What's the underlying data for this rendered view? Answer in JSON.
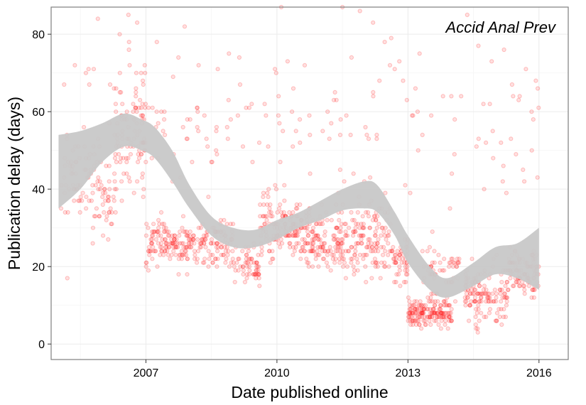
{
  "chart_data": {
    "type": "scatter",
    "title": "",
    "annotation": "Accid Anal Prev",
    "xlabel": "Date published online",
    "ylabel": "Publication delay (days)",
    "xlim": [
      2004.83,
      2016.67
    ],
    "ylim": [
      -4,
      87
    ],
    "x_ticks": [
      2007,
      2010,
      2013,
      2016
    ],
    "x_tick_labels": [
      "2007",
      "2010",
      "2013",
      "2016"
    ],
    "y_ticks": [
      0,
      20,
      40,
      60,
      80
    ],
    "y_tick_labels": [
      "0",
      "20",
      "40",
      "60",
      "80"
    ],
    "grid": true,
    "point_color": "#ff0000",
    "ribbon_color": "#c8c8c8",
    "panel_border_color": "#7f7f7f",
    "smooth_band": [
      {
        "x": 2005.0,
        "lo": 35,
        "hi": 54
      },
      {
        "x": 2005.5,
        "lo": 40,
        "hi": 55
      },
      {
        "x": 2006.0,
        "lo": 47,
        "hi": 57
      },
      {
        "x": 2006.5,
        "lo": 51,
        "hi": 59.5
      },
      {
        "x": 2006.9,
        "lo": 50,
        "hi": 58
      },
      {
        "x": 2007.2,
        "lo": 48,
        "hi": 56
      },
      {
        "x": 2007.6,
        "lo": 42,
        "hi": 50
      },
      {
        "x": 2008.0,
        "lo": 35,
        "hi": 41
      },
      {
        "x": 2008.5,
        "lo": 28,
        "hi": 33
      },
      {
        "x": 2009.0,
        "lo": 25,
        "hi": 30
      },
      {
        "x": 2009.5,
        "lo": 25,
        "hi": 29.5
      },
      {
        "x": 2010.0,
        "lo": 27,
        "hi": 32
      },
      {
        "x": 2010.5,
        "lo": 30,
        "hi": 34
      },
      {
        "x": 2011.0,
        "lo": 32,
        "hi": 37
      },
      {
        "x": 2011.5,
        "lo": 34.5,
        "hi": 40
      },
      {
        "x": 2012.0,
        "lo": 35,
        "hi": 42
      },
      {
        "x": 2012.3,
        "lo": 34,
        "hi": 41
      },
      {
        "x": 2012.7,
        "lo": 28,
        "hi": 34
      },
      {
        "x": 2013.0,
        "lo": 21,
        "hi": 28
      },
      {
        "x": 2013.5,
        "lo": 14,
        "hi": 20
      },
      {
        "x": 2013.9,
        "lo": 12,
        "hi": 17
      },
      {
        "x": 2014.5,
        "lo": 15,
        "hi": 21
      },
      {
        "x": 2015.0,
        "lo": 18,
        "hi": 25
      },
      {
        "x": 2015.5,
        "lo": 17,
        "hi": 26
      },
      {
        "x": 2016.0,
        "lo": 14,
        "hi": 30
      }
    ],
    "point_clusters": [
      {
        "x0": 2005.0,
        "x1": 2005.6,
        "y_center": 42,
        "y_spread": 8,
        "count": 35
      },
      {
        "x0": 2005.6,
        "x1": 2006.3,
        "y_center": 40,
        "y_spread": 10,
        "count": 70
      },
      {
        "x0": 2006.3,
        "x1": 2007.0,
        "y_center": 55,
        "y_spread": 12,
        "count": 90
      },
      {
        "x0": 2007.0,
        "x1": 2008.0,
        "y_center": 26,
        "y_spread": 5,
        "count": 130
      },
      {
        "x0": 2008.0,
        "x1": 2009.0,
        "y_center": 26,
        "y_spread": 5,
        "count": 110
      },
      {
        "x0": 2009.0,
        "x1": 2009.6,
        "y_center": 20,
        "y_spread": 4,
        "count": 60
      },
      {
        "x0": 2009.6,
        "x1": 2010.5,
        "y_center": 30,
        "y_spread": 7,
        "count": 130
      },
      {
        "x0": 2010.5,
        "x1": 2011.5,
        "y_center": 27,
        "y_spread": 6,
        "count": 150
      },
      {
        "x0": 2011.5,
        "x1": 2012.6,
        "y_center": 27,
        "y_spread": 8,
        "count": 150
      },
      {
        "x0": 2012.6,
        "x1": 2013.0,
        "y_center": 22,
        "y_spread": 6,
        "count": 50
      },
      {
        "x0": 2013.0,
        "x1": 2014.0,
        "y_center": 8,
        "y_spread": 3,
        "count": 160
      },
      {
        "x0": 2013.3,
        "x1": 2014.2,
        "y_center": 18,
        "y_spread": 6,
        "count": 60
      },
      {
        "x0": 2014.3,
        "x1": 2015.3,
        "y_center": 13,
        "y_spread": 6,
        "count": 140
      },
      {
        "x0": 2015.3,
        "x1": 2016.0,
        "y_center": 19,
        "y_spread": 5,
        "count": 90
      },
      {
        "x0": 2005.0,
        "x1": 2016.0,
        "y_center": 55,
        "y_spread": 20,
        "count": 200
      }
    ],
    "outlier_points": [
      {
        "x": 2005.9,
        "y": 84
      },
      {
        "x": 2006.6,
        "y": 85
      },
      {
        "x": 2006.4,
        "y": 80
      },
      {
        "x": 2006.8,
        "y": 83
      },
      {
        "x": 2010.1,
        "y": 87
      },
      {
        "x": 2011.5,
        "y": 87
      },
      {
        "x": 2011.9,
        "y": 86
      },
      {
        "x": 2008.9,
        "y": 75
      },
      {
        "x": 2015.2,
        "y": 76
      },
      {
        "x": 2015.7,
        "y": 71
      },
      {
        "x": 2005.2,
        "y": 17
      },
      {
        "x": 2009.6,
        "y": 15
      },
      {
        "x": 2014.6,
        "y": 3
      },
      {
        "x": 2012.2,
        "y": 83
      }
    ]
  }
}
